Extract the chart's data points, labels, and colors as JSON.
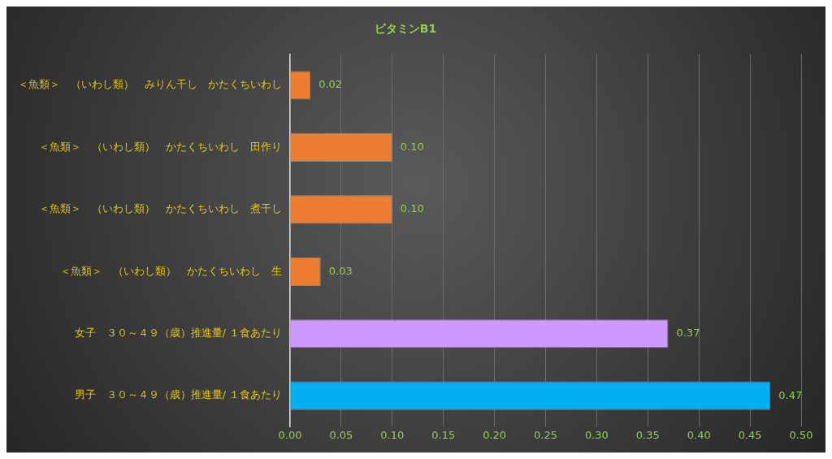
{
  "chart_data": {
    "type": "bar",
    "orientation": "horizontal",
    "title": "ビタミンB1",
    "categories": [
      "＜魚類＞　（いわし類）　みりん干し　かたくちいわし",
      "＜魚類＞　（いわし類）　かたくちいわし　田作り",
      "＜魚類＞　（いわし類）　かたくちいわし　煮干し",
      "＜魚類＞　（いわし類）　かたくちいわし　生",
      "女子　３０～４９（歳）推進量/ １食あたり",
      "男子　３０～４９（歳）推進量/ １食あたり"
    ],
    "values": [
      0.02,
      0.1,
      0.1,
      0.03,
      0.37,
      0.47
    ],
    "colors": [
      "#ed7d31",
      "#ed7d31",
      "#ed7d31",
      "#ed7d31",
      "#cc99ff",
      "#00b0f0"
    ],
    "value_labels": [
      "0.02",
      "0.10",
      "0.10",
      "0.03",
      "0.37",
      "0.47"
    ],
    "xlim": [
      0,
      0.5
    ],
    "xticks": [
      {
        "value": 0,
        "label": "0.00"
      },
      {
        "value": 0.05,
        "label": "0.05"
      },
      {
        "value": 0.1,
        "label": "0.10"
      },
      {
        "value": 0.15,
        "label": "0.15"
      },
      {
        "value": 0.2,
        "label": "0.20"
      },
      {
        "value": 0.25,
        "label": "0.25"
      },
      {
        "value": 0.3,
        "label": "0.30"
      },
      {
        "value": 0.35,
        "label": "0.35"
      },
      {
        "value": 0.4,
        "label": "0.40"
      },
      {
        "value": 0.45,
        "label": "0.45"
      },
      {
        "value": 0.5,
        "label": "0.50"
      }
    ],
    "grid": "x",
    "legend": false
  }
}
